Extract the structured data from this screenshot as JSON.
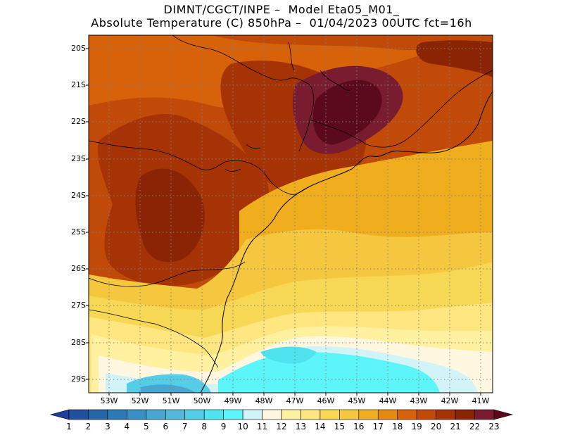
{
  "header": {
    "title_line1": "DIMNT/CGCT/INPE –  Model Eta05_M01_",
    "title_line2": "Absolute Temperature (C) 850hPa –  01/04/2023 00UTC fct=16h"
  },
  "map": {
    "variable": "Absolute Temperature (C)",
    "level": "850hPa",
    "model": "Eta05_M01_",
    "institution": "DIMNT/CGCT/INPE",
    "run": "01/04/2023 00UTC",
    "forecast": "fct=16h",
    "lat_labels": [
      "20S",
      "21S",
      "22S",
      "23S",
      "24S",
      "25S",
      "26S",
      "27S",
      "28S",
      "29S"
    ],
    "lon_labels": [
      "53W",
      "52W",
      "51W",
      "50W",
      "49W",
      "48W",
      "47W",
      "46W",
      "45W",
      "44W",
      "43W",
      "42W",
      "41W"
    ]
  },
  "colorbar": {
    "labels": [
      "1",
      "2",
      "3",
      "4",
      "5",
      "6",
      "7",
      "8",
      "9",
      "10",
      "11",
      "12",
      "13",
      "14",
      "15",
      "16",
      "17",
      "18",
      "19",
      "20",
      "21",
      "22",
      "23"
    ],
    "colors": [
      "#1f3f9a",
      "#21509e",
      "#2565a8",
      "#2b7ab6",
      "#3a90c4",
      "#4aa5d0",
      "#55b8d8",
      "#55cde6",
      "#4fe3f0",
      "#5cf6fa",
      "#d2f4f8",
      "#fff7e0",
      "#fff1a0",
      "#ffe680",
      "#f7d855",
      "#f5c73e",
      "#f0ae1e",
      "#e38a0f",
      "#d8620a",
      "#c24a08",
      "#a63306",
      "#8b2405",
      "#7a1c30",
      "#5b0a1e"
    ]
  }
}
